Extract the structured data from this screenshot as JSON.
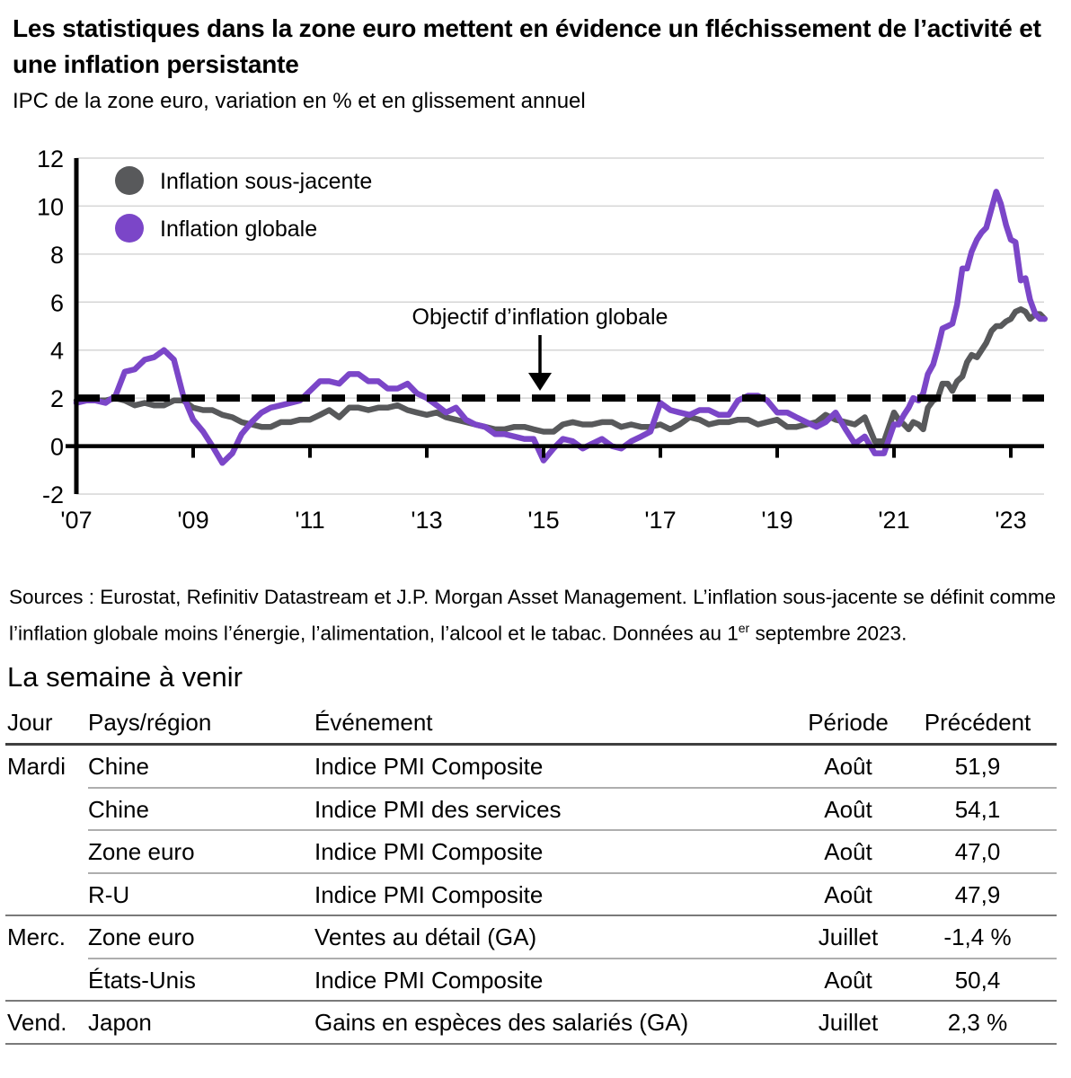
{
  "header": {
    "title": "Les statistiques dans la zone euro mettent en évidence un fléchissement de l’activité et une inflation persistante",
    "subtitle": "IPC de la zone euro, variation en % et en glissement annuel"
  },
  "chart_data": {
    "type": "line",
    "title": "IPC de la zone euro, variation en % et en glissement annuel",
    "xlabel": "",
    "ylabel": "variation en %, glissement annuel",
    "x_axis": {
      "ticks": [
        2007,
        2009,
        2011,
        2013,
        2015,
        2017,
        2019,
        2021,
        2023
      ],
      "tick_labels": [
        "'07",
        "'09",
        "'11",
        "'13",
        "'15",
        "'17",
        "'19",
        "'21",
        "'23"
      ],
      "range": [
        2007,
        2023.6
      ]
    },
    "y_axis": {
      "ticks": [
        12,
        10,
        8,
        6,
        4,
        2,
        0,
        -2
      ],
      "range": [
        -2,
        12
      ],
      "gridlines": [
        12,
        10,
        8,
        6,
        4,
        2,
        -2
      ]
    },
    "target_line": {
      "value": 2,
      "label": "Objectif d’inflation globale",
      "style": "dashed",
      "color": "#000000"
    },
    "legend_position": "top-left",
    "grid": true,
    "series": [
      {
        "name": "Inflation sous-jacente",
        "color": "#58595B",
        "points": [
          [
            2007.0,
            1.9
          ],
          [
            2007.17,
            1.9
          ],
          [
            2007.33,
            1.9
          ],
          [
            2007.5,
            1.9
          ],
          [
            2007.67,
            2.0
          ],
          [
            2007.83,
            1.9
          ],
          [
            2008.0,
            1.7
          ],
          [
            2008.17,
            1.8
          ],
          [
            2008.33,
            1.7
          ],
          [
            2008.5,
            1.7
          ],
          [
            2008.67,
            1.9
          ],
          [
            2008.83,
            1.9
          ],
          [
            2009.0,
            1.6
          ],
          [
            2009.17,
            1.5
          ],
          [
            2009.33,
            1.5
          ],
          [
            2009.5,
            1.3
          ],
          [
            2009.67,
            1.2
          ],
          [
            2009.83,
            1.0
          ],
          [
            2010.0,
            0.9
          ],
          [
            2010.17,
            0.8
          ],
          [
            2010.33,
            0.8
          ],
          [
            2010.5,
            1.0
          ],
          [
            2010.67,
            1.0
          ],
          [
            2010.83,
            1.1
          ],
          [
            2011.0,
            1.1
          ],
          [
            2011.17,
            1.3
          ],
          [
            2011.33,
            1.5
          ],
          [
            2011.5,
            1.2
          ],
          [
            2011.67,
            1.6
          ],
          [
            2011.83,
            1.6
          ],
          [
            2012.0,
            1.5
          ],
          [
            2012.17,
            1.6
          ],
          [
            2012.33,
            1.6
          ],
          [
            2012.5,
            1.7
          ],
          [
            2012.67,
            1.5
          ],
          [
            2012.83,
            1.4
          ],
          [
            2013.0,
            1.3
          ],
          [
            2013.17,
            1.4
          ],
          [
            2013.33,
            1.2
          ],
          [
            2013.5,
            1.1
          ],
          [
            2013.67,
            1.0
          ],
          [
            2013.83,
            0.9
          ],
          [
            2014.0,
            0.8
          ],
          [
            2014.17,
            0.7
          ],
          [
            2014.33,
            0.7
          ],
          [
            2014.5,
            0.8
          ],
          [
            2014.67,
            0.8
          ],
          [
            2014.83,
            0.7
          ],
          [
            2015.0,
            0.6
          ],
          [
            2015.17,
            0.6
          ],
          [
            2015.33,
            0.9
          ],
          [
            2015.5,
            1.0
          ],
          [
            2015.67,
            0.9
          ],
          [
            2015.83,
            0.9
          ],
          [
            2016.0,
            1.0
          ],
          [
            2016.17,
            1.0
          ],
          [
            2016.33,
            0.8
          ],
          [
            2016.5,
            0.9
          ],
          [
            2016.67,
            0.8
          ],
          [
            2016.83,
            0.8
          ],
          [
            2017.0,
            0.9
          ],
          [
            2017.17,
            0.7
          ],
          [
            2017.33,
            0.9
          ],
          [
            2017.5,
            1.2
          ],
          [
            2017.67,
            1.1
          ],
          [
            2017.83,
            0.9
          ],
          [
            2018.0,
            1.0
          ],
          [
            2018.17,
            1.0
          ],
          [
            2018.33,
            1.1
          ],
          [
            2018.5,
            1.1
          ],
          [
            2018.67,
            0.9
          ],
          [
            2018.83,
            1.0
          ],
          [
            2019.0,
            1.1
          ],
          [
            2019.17,
            0.8
          ],
          [
            2019.33,
            0.8
          ],
          [
            2019.5,
            0.9
          ],
          [
            2019.67,
            1.0
          ],
          [
            2019.83,
            1.3
          ],
          [
            2020.0,
            1.1
          ],
          [
            2020.17,
            1.0
          ],
          [
            2020.33,
            0.9
          ],
          [
            2020.5,
            1.2
          ],
          [
            2020.67,
            0.2
          ],
          [
            2020.83,
            0.2
          ],
          [
            2021.0,
            1.4
          ],
          [
            2021.08,
            1.1
          ],
          [
            2021.17,
            0.9
          ],
          [
            2021.25,
            0.7
          ],
          [
            2021.33,
            1.0
          ],
          [
            2021.42,
            0.9
          ],
          [
            2021.5,
            0.7
          ],
          [
            2021.58,
            1.6
          ],
          [
            2021.67,
            1.9
          ],
          [
            2021.75,
            2.0
          ],
          [
            2021.83,
            2.6
          ],
          [
            2021.92,
            2.6
          ],
          [
            2022.0,
            2.3
          ],
          [
            2022.08,
            2.7
          ],
          [
            2022.17,
            2.9
          ],
          [
            2022.25,
            3.5
          ],
          [
            2022.33,
            3.8
          ],
          [
            2022.42,
            3.7
          ],
          [
            2022.5,
            4.0
          ],
          [
            2022.58,
            4.3
          ],
          [
            2022.67,
            4.8
          ],
          [
            2022.75,
            5.0
          ],
          [
            2022.83,
            5.0
          ],
          [
            2022.92,
            5.2
          ],
          [
            2023.0,
            5.3
          ],
          [
            2023.08,
            5.6
          ],
          [
            2023.17,
            5.7
          ],
          [
            2023.25,
            5.6
          ],
          [
            2023.33,
            5.3
          ],
          [
            2023.42,
            5.5
          ],
          [
            2023.5,
            5.5
          ],
          [
            2023.58,
            5.3
          ]
        ]
      },
      {
        "name": "Inflation globale",
        "color": "#7B46C8",
        "points": [
          [
            2007.0,
            1.8
          ],
          [
            2007.17,
            1.9
          ],
          [
            2007.33,
            1.9
          ],
          [
            2007.5,
            1.8
          ],
          [
            2007.67,
            2.1
          ],
          [
            2007.83,
            3.1
          ],
          [
            2008.0,
            3.2
          ],
          [
            2008.17,
            3.6
          ],
          [
            2008.33,
            3.7
          ],
          [
            2008.5,
            4.0
          ],
          [
            2008.67,
            3.6
          ],
          [
            2008.83,
            2.1
          ],
          [
            2009.0,
            1.1
          ],
          [
            2009.17,
            0.6
          ],
          [
            2009.33,
            0.0
          ],
          [
            2009.5,
            -0.7
          ],
          [
            2009.67,
            -0.3
          ],
          [
            2009.83,
            0.5
          ],
          [
            2010.0,
            1.0
          ],
          [
            2010.17,
            1.4
          ],
          [
            2010.33,
            1.6
          ],
          [
            2010.5,
            1.7
          ],
          [
            2010.67,
            1.8
          ],
          [
            2010.83,
            1.9
          ],
          [
            2011.0,
            2.3
          ],
          [
            2011.17,
            2.7
          ],
          [
            2011.33,
            2.7
          ],
          [
            2011.5,
            2.6
          ],
          [
            2011.67,
            3.0
          ],
          [
            2011.83,
            3.0
          ],
          [
            2012.0,
            2.7
          ],
          [
            2012.17,
            2.7
          ],
          [
            2012.33,
            2.4
          ],
          [
            2012.5,
            2.4
          ],
          [
            2012.67,
            2.6
          ],
          [
            2012.83,
            2.2
          ],
          [
            2013.0,
            2.0
          ],
          [
            2013.17,
            1.7
          ],
          [
            2013.33,
            1.4
          ],
          [
            2013.5,
            1.6
          ],
          [
            2013.67,
            1.1
          ],
          [
            2013.83,
            0.9
          ],
          [
            2014.0,
            0.8
          ],
          [
            2014.17,
            0.5
          ],
          [
            2014.33,
            0.5
          ],
          [
            2014.5,
            0.4
          ],
          [
            2014.67,
            0.3
          ],
          [
            2014.83,
            0.3
          ],
          [
            2015.0,
            -0.6
          ],
          [
            2015.17,
            -0.1
          ],
          [
            2015.33,
            0.3
          ],
          [
            2015.5,
            0.2
          ],
          [
            2015.67,
            -0.1
          ],
          [
            2015.83,
            0.1
          ],
          [
            2016.0,
            0.3
          ],
          [
            2016.17,
            0.0
          ],
          [
            2016.33,
            -0.1
          ],
          [
            2016.5,
            0.2
          ],
          [
            2016.67,
            0.4
          ],
          [
            2016.83,
            0.6
          ],
          [
            2017.0,
            1.8
          ],
          [
            2017.17,
            1.5
          ],
          [
            2017.33,
            1.4
          ],
          [
            2017.5,
            1.3
          ],
          [
            2017.67,
            1.5
          ],
          [
            2017.83,
            1.5
          ],
          [
            2018.0,
            1.3
          ],
          [
            2018.17,
            1.3
          ],
          [
            2018.33,
            1.9
          ],
          [
            2018.5,
            2.1
          ],
          [
            2018.67,
            2.1
          ],
          [
            2018.83,
            1.9
          ],
          [
            2019.0,
            1.4
          ],
          [
            2019.17,
            1.4
          ],
          [
            2019.33,
            1.2
          ],
          [
            2019.5,
            1.0
          ],
          [
            2019.67,
            0.8
          ],
          [
            2019.83,
            1.0
          ],
          [
            2020.0,
            1.4
          ],
          [
            2020.17,
            0.7
          ],
          [
            2020.33,
            0.1
          ],
          [
            2020.5,
            0.4
          ],
          [
            2020.67,
            -0.3
          ],
          [
            2020.83,
            -0.3
          ],
          [
            2021.0,
            0.9
          ],
          [
            2021.08,
            0.9
          ],
          [
            2021.17,
            1.3
          ],
          [
            2021.25,
            1.6
          ],
          [
            2021.33,
            2.0
          ],
          [
            2021.42,
            1.9
          ],
          [
            2021.5,
            2.2
          ],
          [
            2021.58,
            3.0
          ],
          [
            2021.67,
            3.4
          ],
          [
            2021.75,
            4.1
          ],
          [
            2021.83,
            4.9
          ],
          [
            2021.92,
            5.0
          ],
          [
            2022.0,
            5.1
          ],
          [
            2022.08,
            5.9
          ],
          [
            2022.17,
            7.4
          ],
          [
            2022.25,
            7.4
          ],
          [
            2022.33,
            8.1
          ],
          [
            2022.42,
            8.6
          ],
          [
            2022.5,
            8.9
          ],
          [
            2022.58,
            9.1
          ],
          [
            2022.67,
            9.9
          ],
          [
            2022.75,
            10.6
          ],
          [
            2022.83,
            10.1
          ],
          [
            2022.92,
            9.2
          ],
          [
            2023.0,
            8.6
          ],
          [
            2023.08,
            8.5
          ],
          [
            2023.17,
            6.9
          ],
          [
            2023.25,
            7.0
          ],
          [
            2023.33,
            6.1
          ],
          [
            2023.42,
            5.5
          ],
          [
            2023.5,
            5.3
          ],
          [
            2023.58,
            5.3
          ]
        ]
      }
    ]
  },
  "sources": {
    "text_before_sup": "Sources : Eurostat, Refinitiv Datastream et J.P. Morgan Asset Management. L’inflation sous-jacente se définit comme l’inflation globale moins l’énergie, l’alimentation, l’alcool et le tabac. Données au 1",
    "sup": "er",
    "text_after_sup": " septembre 2023."
  },
  "week_ahead": {
    "title": "La semaine à venir",
    "columns": [
      "Jour",
      "Pays/région",
      "Événement",
      "Période",
      "Précédent"
    ],
    "rows": [
      {
        "day": "Mardi",
        "region": "Chine",
        "event": "Indice PMI Composite",
        "period": "Août",
        "previous": "51,9"
      },
      {
        "day": "",
        "region": "Chine",
        "event": "Indice PMI des services",
        "period": "Août",
        "previous": "54,1"
      },
      {
        "day": "",
        "region": "Zone euro",
        "event": "Indice PMI Composite",
        "period": "Août",
        "previous": "47,0"
      },
      {
        "day": "",
        "region": "R-U",
        "event": "Indice PMI Composite",
        "period": "Août",
        "previous": "47,9"
      },
      {
        "day": "Merc.",
        "region": "Zone euro",
        "event": "Ventes au détail (GA)",
        "period": "Juillet",
        "previous": "-1,4 %"
      },
      {
        "day": "",
        "region": "États-Unis",
        "event": "Indice PMI Composite",
        "period": "Août",
        "previous": "50,4"
      },
      {
        "day": "Vend.",
        "region": "Japon",
        "event": "Gains en espèces des salariés (GA)",
        "period": "Juillet",
        "previous": "2,3 %"
      }
    ]
  },
  "colors": {
    "core_inflation": "#58595B",
    "headline_inflation": "#7B46C8",
    "gridline": "#d5d5d5",
    "axis": "#000000",
    "header_rule": "#3f3f3f",
    "group_rule": "#7a7a7a",
    "inner_rule": "#aeaeae"
  }
}
